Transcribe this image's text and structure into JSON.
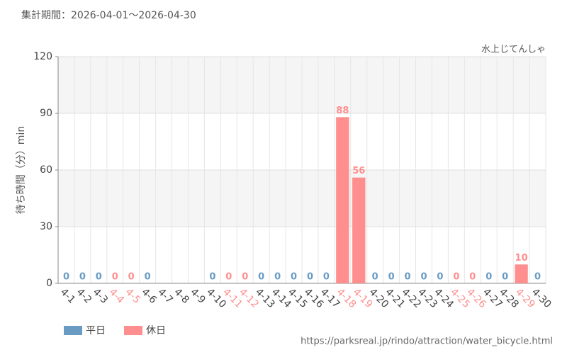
{
  "chart_data": {
    "type": "bar",
    "title": "集計期間：2026-04-01～2026-04-30",
    "subtitle": "水上じてんしゃ",
    "y_label": "待ち時間（分）min",
    "source": "https://parksreal.jp/rindo/attraction/water_bicycle.html",
    "categories": [
      "4-1",
      "4-2",
      "4-3",
      "4-4",
      "4-5",
      "4-6",
      "4-7",
      "4-8",
      "4-9",
      "4-10",
      "4-11",
      "4-12",
      "4-13",
      "4-14",
      "4-15",
      "4-16",
      "4-17",
      "4-18",
      "4-19",
      "4-20",
      "4-21",
      "4-22",
      "4-23",
      "4-24",
      "4-25",
      "4-26",
      "4-27",
      "4-28",
      "4-29",
      "4-30"
    ],
    "series": [
      {
        "name": "平日",
        "color": "#6a9bc3",
        "values": [
          0,
          0,
          0,
          null,
          null,
          0,
          null,
          null,
          null,
          0,
          null,
          null,
          0,
          0,
          0,
          0,
          0,
          null,
          null,
          0,
          0,
          0,
          0,
          0,
          null,
          null,
          0,
          0,
          null,
          0
        ]
      },
      {
        "name": "休日",
        "color": "#ff8f8f",
        "values": [
          null,
          null,
          null,
          0,
          0,
          null,
          null,
          null,
          null,
          null,
          0,
          0,
          null,
          null,
          null,
          null,
          null,
          88,
          56,
          null,
          null,
          null,
          null,
          null,
          0,
          0,
          null,
          null,
          10,
          null
        ]
      }
    ],
    "ylim": [
      0,
      120
    ],
    "yticks": [
      0,
      30,
      60,
      90,
      120
    ],
    "grid": true
  }
}
